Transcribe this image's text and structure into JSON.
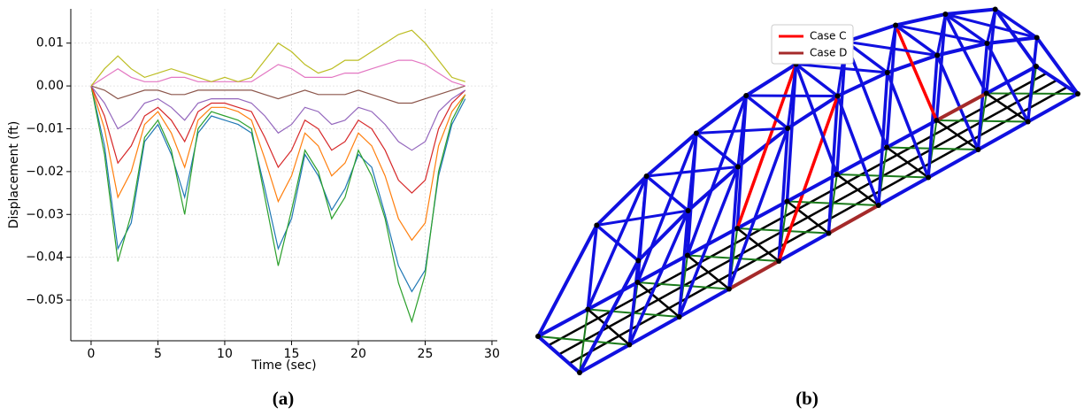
{
  "chart_data": {
    "type": "line",
    "xlabel": "Time (sec)",
    "ylabel": "Displacement (ft)",
    "x": [
      0,
      1,
      2,
      3,
      4,
      5,
      6,
      7,
      8,
      9,
      10,
      11,
      12,
      13,
      14,
      15,
      16,
      17,
      18,
      19,
      20,
      21,
      22,
      23,
      24,
      25,
      26,
      27,
      28
    ],
    "xlim": [
      -1.52,
      30.4
    ],
    "ylim": [
      -0.0595,
      0.018
    ],
    "xticks": [
      0,
      5,
      10,
      15,
      20,
      25,
      30
    ],
    "yticks": [
      {
        "value": 0.01,
        "label": "0.01"
      },
      {
        "value": 0,
        "label": "0.00"
      },
      {
        "value": -0.01,
        "label": "−0.01"
      },
      {
        "value": -0.02,
        "label": "−0.02"
      },
      {
        "value": -0.03,
        "label": "−0.03"
      },
      {
        "value": -0.04,
        "label": "−0.04"
      },
      {
        "value": -0.05,
        "label": "−0.05"
      }
    ],
    "grid": true,
    "series": [
      {
        "color": "#1f77b4",
        "values": [
          0,
          -0.014,
          -0.038,
          -0.032,
          -0.013,
          -0.009,
          -0.016,
          -0.026,
          -0.011,
          -0.007,
          -0.008,
          -0.009,
          -0.011,
          -0.024,
          -0.038,
          -0.031,
          -0.016,
          -0.021,
          -0.029,
          -0.024,
          -0.016,
          -0.019,
          -0.03,
          -0.042,
          -0.048,
          -0.043,
          -0.021,
          -0.009,
          -0.003
        ]
      },
      {
        "color": "#2ca02c",
        "values": [
          0,
          -0.016,
          -0.041,
          -0.03,
          -0.012,
          -0.008,
          -0.015,
          -0.03,
          -0.01,
          -0.006,
          -0.007,
          -0.008,
          -0.01,
          -0.026,
          -0.042,
          -0.029,
          -0.015,
          -0.02,
          -0.031,
          -0.026,
          -0.015,
          -0.021,
          -0.031,
          -0.046,
          -0.055,
          -0.044,
          -0.02,
          -0.008,
          -0.002
        ]
      },
      {
        "color": "#ff7f0e",
        "values": [
          0,
          -0.01,
          -0.026,
          -0.02,
          -0.009,
          -0.006,
          -0.011,
          -0.019,
          -0.008,
          -0.005,
          -0.005,
          -0.006,
          -0.008,
          -0.017,
          -0.027,
          -0.021,
          -0.011,
          -0.014,
          -0.021,
          -0.018,
          -0.011,
          -0.014,
          -0.021,
          -0.031,
          -0.036,
          -0.032,
          -0.014,
          -0.006,
          -0.002
        ]
      },
      {
        "color": "#d62728",
        "values": [
          0,
          -0.007,
          -0.018,
          -0.014,
          -0.007,
          -0.005,
          -0.008,
          -0.013,
          -0.006,
          -0.004,
          -0.004,
          -0.005,
          -0.006,
          -0.012,
          -0.019,
          -0.015,
          -0.008,
          -0.01,
          -0.015,
          -0.013,
          -0.008,
          -0.01,
          -0.015,
          -0.022,
          -0.025,
          -0.022,
          -0.01,
          -0.004,
          -0.001
        ]
      },
      {
        "color": "#9467bd",
        "values": [
          0,
          -0.004,
          -0.01,
          -0.008,
          -0.004,
          -0.003,
          -0.005,
          -0.008,
          -0.004,
          -0.003,
          -0.003,
          -0.003,
          -0.004,
          -0.007,
          -0.011,
          -0.009,
          -0.005,
          -0.006,
          -0.009,
          -0.008,
          -0.005,
          -0.006,
          -0.009,
          -0.013,
          -0.015,
          -0.013,
          -0.006,
          -0.003,
          -0.001
        ]
      },
      {
        "color": "#8c564b",
        "values": [
          0,
          -0.001,
          -0.003,
          -0.002,
          -0.001,
          -0.001,
          -0.002,
          -0.002,
          -0.001,
          -0.001,
          -0.001,
          -0.001,
          -0.001,
          -0.002,
          -0.003,
          -0.002,
          -0.001,
          -0.002,
          -0.002,
          -0.002,
          -0.001,
          -0.002,
          -0.003,
          -0.004,
          -0.004,
          -0.003,
          -0.002,
          -0.001,
          0
        ]
      },
      {
        "color": "#e377c2",
        "values": [
          0,
          0.002,
          0.004,
          0.002,
          0.001,
          0.001,
          0.002,
          0.002,
          0.001,
          0.001,
          0.001,
          0.001,
          0.001,
          0.003,
          0.005,
          0.004,
          0.002,
          0.002,
          0.002,
          0.003,
          0.003,
          0.004,
          0.005,
          0.006,
          0.006,
          0.005,
          0.003,
          0.001,
          0
        ]
      },
      {
        "color": "#bcbd22",
        "values": [
          0,
          0.004,
          0.007,
          0.004,
          0.002,
          0.003,
          0.004,
          0.003,
          0.002,
          0.001,
          0.002,
          0.001,
          0.002,
          0.006,
          0.01,
          0.008,
          0.005,
          0.003,
          0.004,
          0.006,
          0.006,
          0.008,
          0.01,
          0.012,
          0.013,
          0.01,
          0.006,
          0.002,
          0.001
        ]
      }
    ]
  },
  "panel_labels": [
    "(a)",
    "(b)"
  ],
  "diagram": {
    "legend": [
      {
        "label": "Case C",
        "color": "#ff0000"
      },
      {
        "label": "Case D",
        "color": "#a52a2a"
      }
    ]
  }
}
